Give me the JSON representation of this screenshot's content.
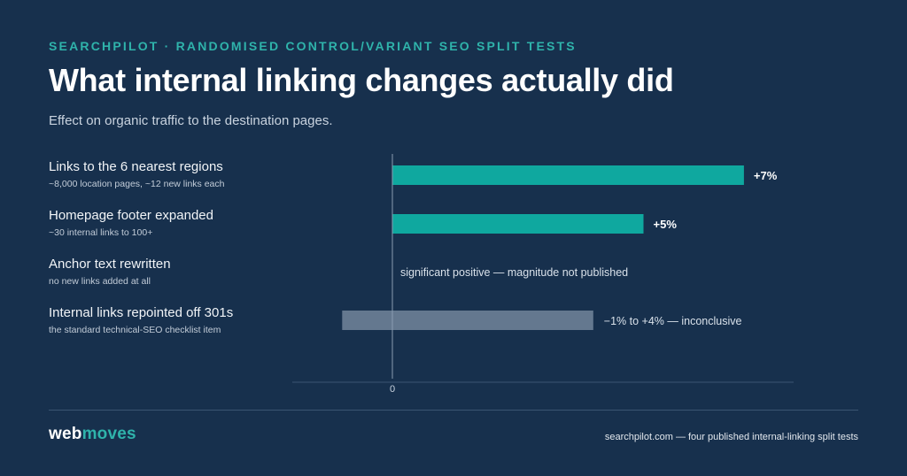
{
  "header": {
    "eyebrow": "SEARCHPILOT · RANDOMISED CONTROL/VARIANT SEO SPLIT TESTS",
    "title": "What internal linking changes actually did",
    "subtitle": "Effect on organic traffic to the destination pages."
  },
  "rows": [
    {
      "label": "Links to the 6 nearest regions",
      "detail": "~8,000 location pages, ~12 new links each"
    },
    {
      "label": "Homepage footer expanded",
      "detail": "~30 internal links to 100+"
    },
    {
      "label": "Anchor text rewritten",
      "detail": "no new links added at all"
    },
    {
      "label": "Internal links repointed off 301s",
      "detail": "the standard technical-SEO checklist item"
    }
  ],
  "chart_data": {
    "type": "bar",
    "orientation": "horizontal",
    "categories": [
      "Links to the 6 nearest regions",
      "Homepage footer expanded",
      "Anchor text rewritten",
      "Internal links repointed off 301s"
    ],
    "bars": [
      {
        "kind": "value",
        "value": 7,
        "label": "+7%",
        "color": "#0fa89f"
      },
      {
        "kind": "value",
        "value": 5,
        "label": "+5%",
        "color": "#0fa89f"
      },
      {
        "kind": "none",
        "label": "significant positive — magnitude not published"
      },
      {
        "kind": "range",
        "low": -1,
        "high": 4,
        "label": "−1% to +4% — inconclusive",
        "color": "#64788f"
      }
    ],
    "xlim": [
      -2,
      8
    ],
    "x_ticks": [
      0
    ],
    "x_tick_labels": [
      "0"
    ],
    "grid": false
  },
  "footer": {
    "brand_a": "web",
    "brand_b": "moves",
    "source": "searchpilot.com — four published internal-linking split tests"
  }
}
